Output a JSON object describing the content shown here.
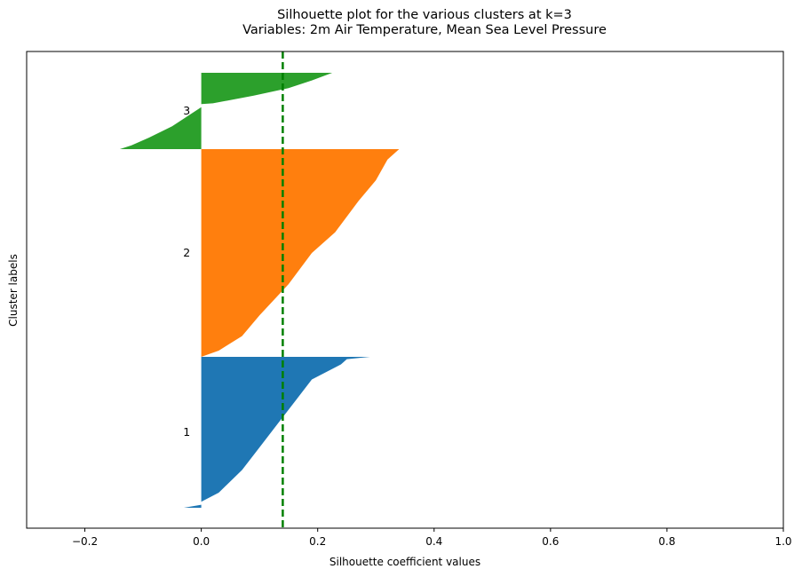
{
  "chart_data": {
    "type": "silhouette",
    "title_line1": "Silhouette plot for the various clusters at k=3",
    "title_line2": "Variables: 2m Air Temperature, Mean Sea Level Pressure",
    "xlabel": "Silhouette coefficient values",
    "ylabel": "Cluster labels",
    "xlim": [
      -0.3,
      1.0
    ],
    "xticks": [
      -0.2,
      0.0,
      0.2,
      0.4,
      0.6,
      0.8,
      1.0
    ],
    "xtick_labels": [
      "−0.2",
      "0.0",
      "0.2",
      "0.4",
      "0.6",
      "0.8",
      "1.0"
    ],
    "yticks_visible": false,
    "mean_silhouette": 0.14,
    "mean_line_color": "#008000",
    "clusters": [
      {
        "label": "1",
        "color": "#1f77b4",
        "profile": [
          [
            0,
            -0.03
          ],
          [
            0.02,
            0.0
          ],
          [
            0.04,
            0.0
          ],
          [
            0.1,
            0.03
          ],
          [
            0.25,
            0.07
          ],
          [
            0.4,
            0.1
          ],
          [
            0.55,
            0.13
          ],
          [
            0.7,
            0.16
          ],
          [
            0.85,
            0.19
          ],
          [
            0.95,
            0.24
          ],
          [
            0.985,
            0.25
          ],
          [
            1.0,
            0.29
          ]
        ]
      },
      {
        "label": "2",
        "color": "#ff7f0e",
        "profile": [
          [
            0,
            0.0
          ],
          [
            0.03,
            0.03
          ],
          [
            0.1,
            0.07
          ],
          [
            0.2,
            0.1
          ],
          [
            0.35,
            0.15
          ],
          [
            0.5,
            0.19
          ],
          [
            0.6,
            0.23
          ],
          [
            0.75,
            0.27
          ],
          [
            0.85,
            0.3
          ],
          [
            0.95,
            0.32
          ],
          [
            1.0,
            0.34
          ]
        ]
      },
      {
        "label": "3",
        "color": "#2ca02c",
        "profile": [
          [
            0,
            -0.14
          ],
          [
            0.05,
            -0.12
          ],
          [
            0.15,
            -0.09
          ],
          [
            0.3,
            -0.05
          ],
          [
            0.5,
            -0.01
          ],
          [
            0.55,
            0.0
          ],
          [
            0.59,
            0.0
          ],
          [
            0.6,
            0.02
          ],
          [
            0.7,
            0.09
          ],
          [
            0.8,
            0.15
          ],
          [
            0.9,
            0.19
          ],
          [
            1.0,
            0.225
          ]
        ]
      }
    ]
  }
}
